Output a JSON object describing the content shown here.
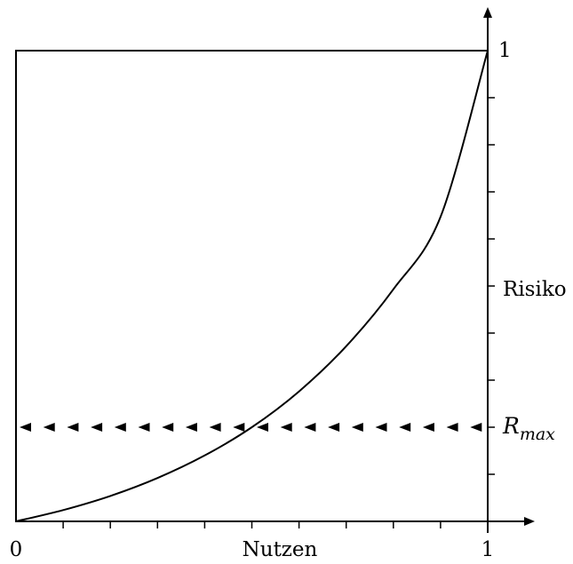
{
  "chart_data": {
    "type": "line",
    "title": "",
    "xlabel": "Nutzen",
    "ylabel": "Risiko",
    "xlim": [
      0,
      1
    ],
    "ylim": [
      0,
      1
    ],
    "x_tick_labels": [
      "0",
      "1"
    ],
    "y_tick_labels": [
      "1"
    ],
    "grid": false,
    "series": [
      {
        "x": [
          0,
          0.1,
          0.2,
          0.3,
          0.4,
          0.5,
          0.6,
          0.7,
          0.8,
          0.9,
          1.0
        ],
        "y": [
          0,
          0.024,
          0.054,
          0.092,
          0.14,
          0.2,
          0.276,
          0.372,
          0.493,
          0.647,
          1.0
        ]
      }
    ],
    "threshold": {
      "label": "R",
      "label_subscript": "max",
      "value": 0.2,
      "style": "arrowheads-pointing-left"
    }
  }
}
